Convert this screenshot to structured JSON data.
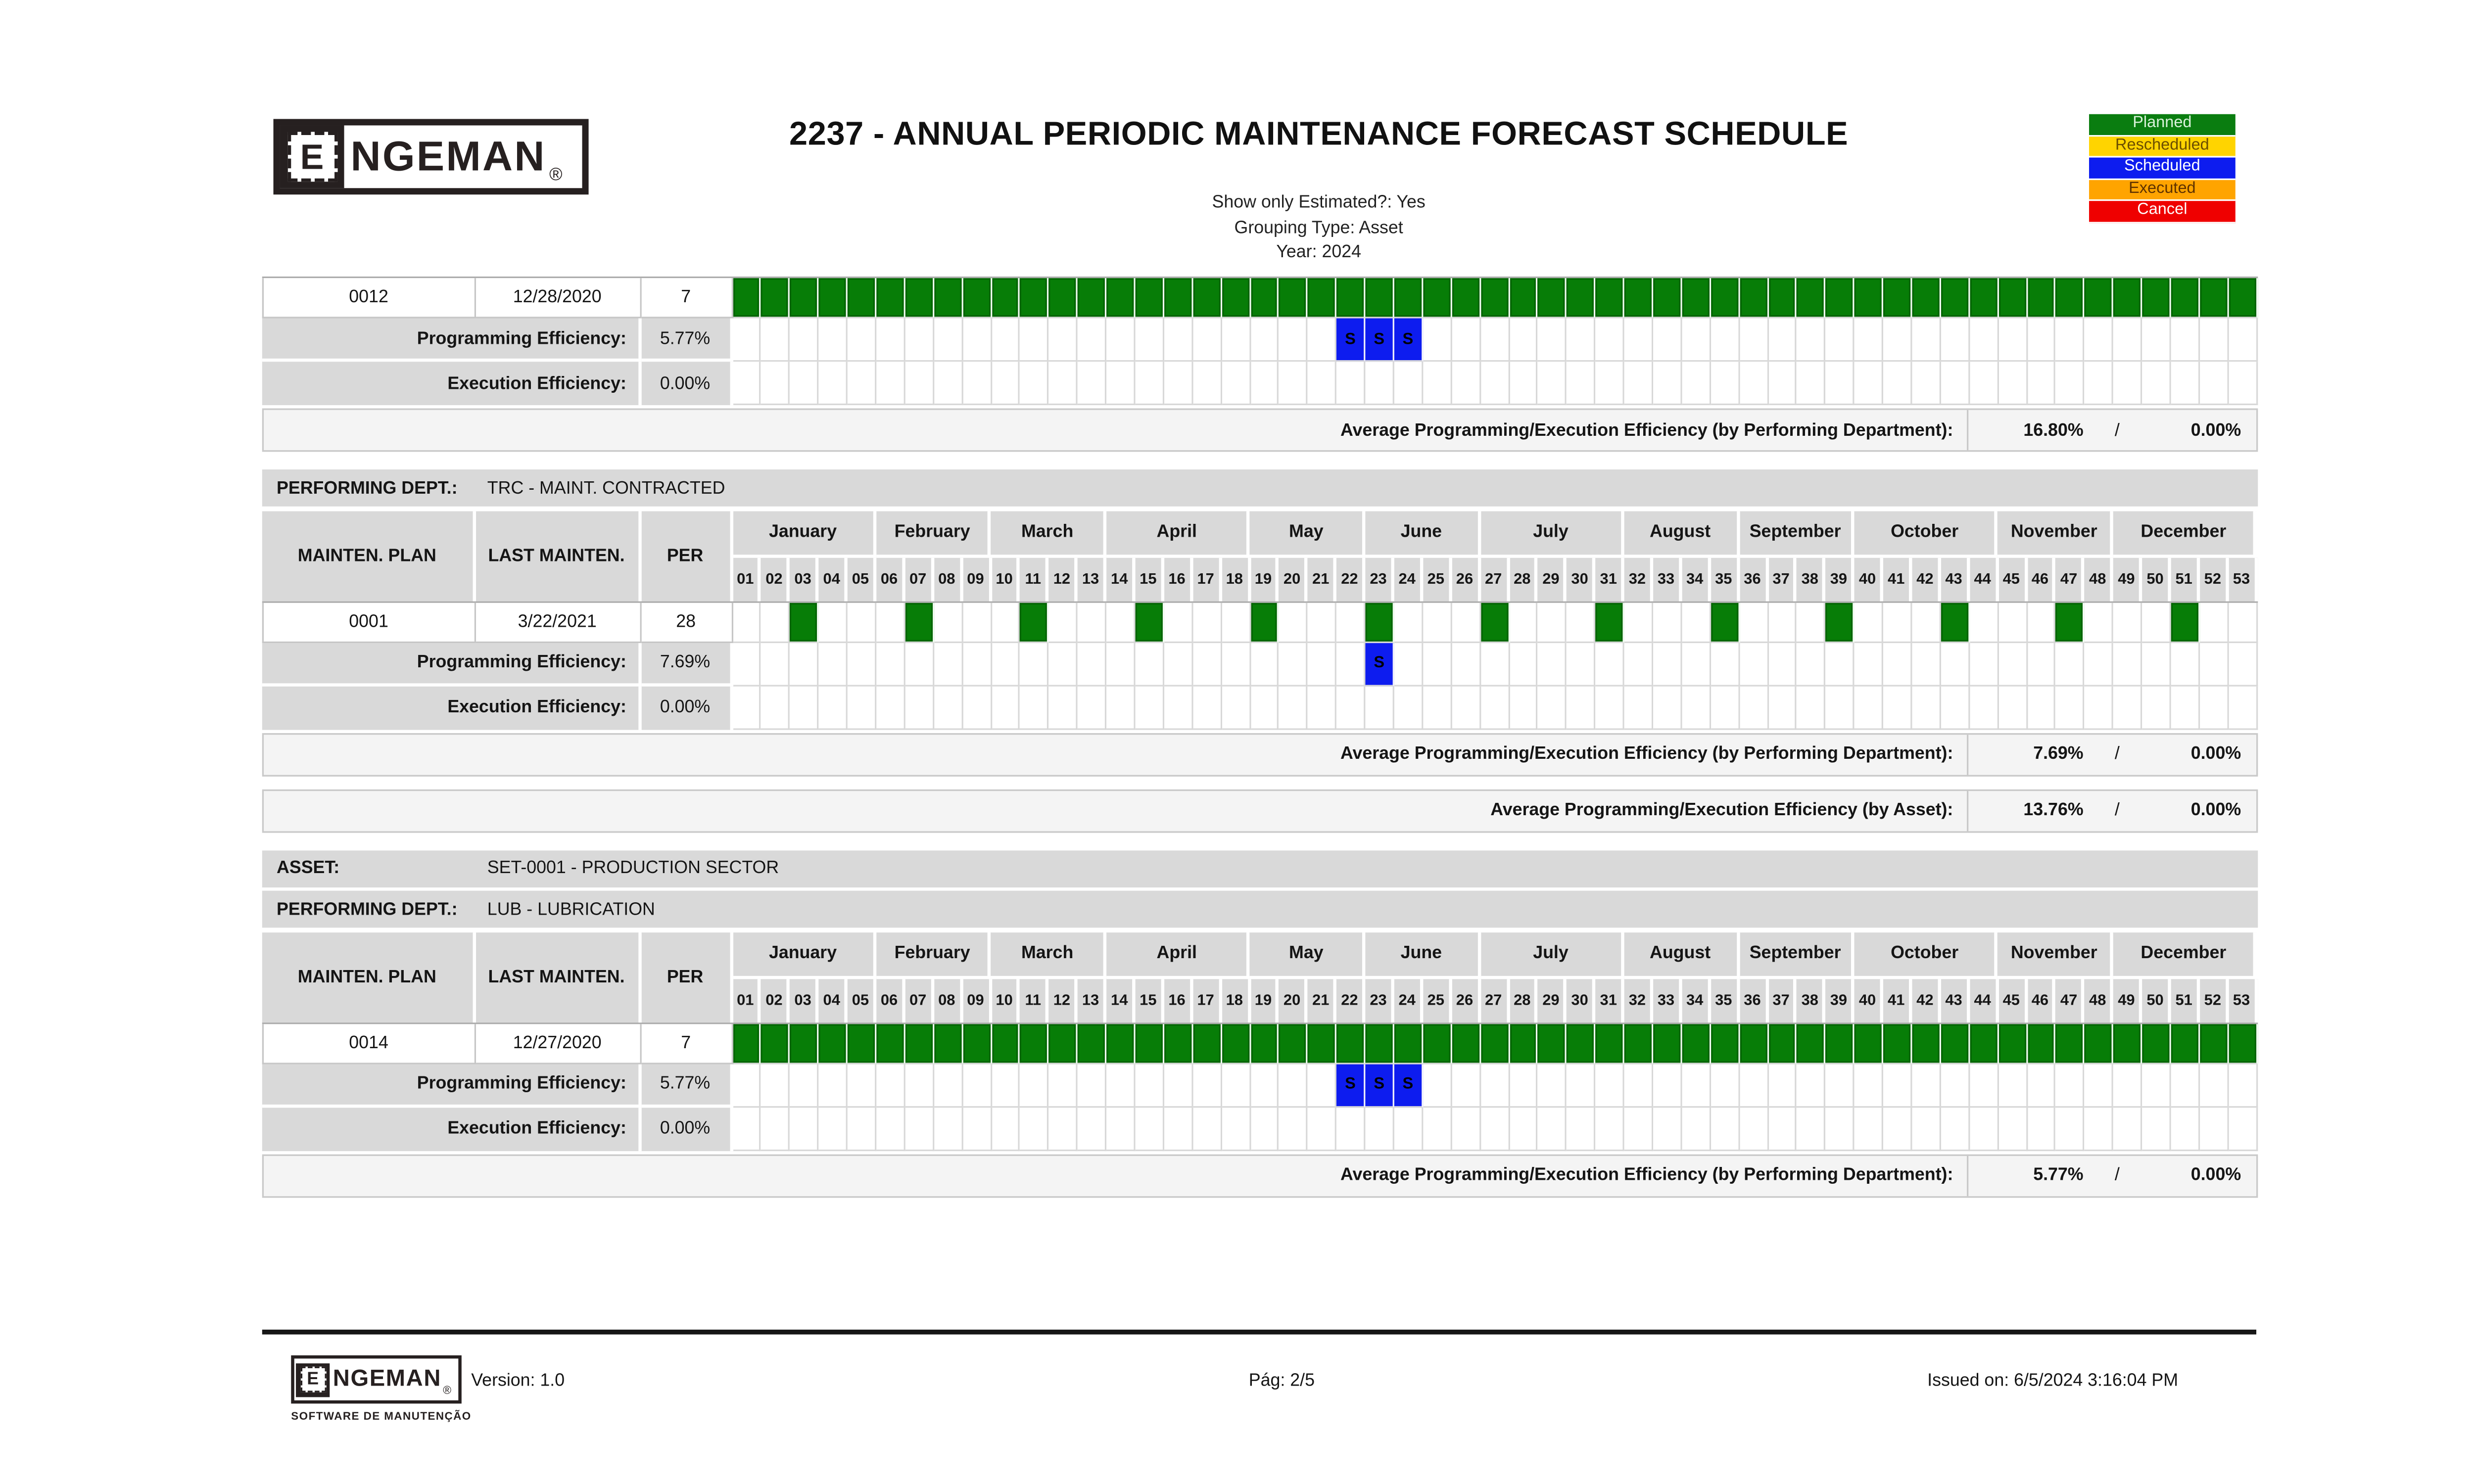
{
  "header": {
    "logo": {
      "emblem_letter": "E",
      "wordmark": "NGEMAN",
      "registered": "®"
    },
    "title": "2237 - ANNUAL PERIODIC MAINTENANCE FORECAST SCHEDULE",
    "params": [
      "Show only Estimated?: Yes",
      "Grouping Type: Asset",
      "Year: 2024"
    ]
  },
  "legend": [
    {
      "label": "Planned",
      "bg": "#0A7D10",
      "fg": "#D9F2D9"
    },
    {
      "label": "Rescheduled",
      "bg": "#FFD400",
      "fg": "#6B4E00"
    },
    {
      "label": "Scheduled",
      "bg": "#0D1CEF",
      "fg": "#FFFFFF"
    },
    {
      "label": "Executed",
      "bg": "#FFA400",
      "fg": "#5E3200"
    },
    {
      "label": "Cancel",
      "bg": "#EF0000",
      "fg": "#FFFFFF"
    }
  ],
  "calendar": {
    "months": [
      {
        "name": "January",
        "weeks": [
          "01",
          "02",
          "03",
          "04",
          "05"
        ]
      },
      {
        "name": "February",
        "weeks": [
          "06",
          "07",
          "08",
          "09"
        ]
      },
      {
        "name": "March",
        "weeks": [
          "10",
          "11",
          "12",
          "13"
        ]
      },
      {
        "name": "April",
        "weeks": [
          "14",
          "15",
          "16",
          "17",
          "18"
        ]
      },
      {
        "name": "May",
        "weeks": [
          "19",
          "20",
          "21",
          "22"
        ]
      },
      {
        "name": "June",
        "weeks": [
          "23",
          "24",
          "25",
          "26"
        ]
      },
      {
        "name": "July",
        "weeks": [
          "27",
          "28",
          "29",
          "30",
          "31"
        ]
      },
      {
        "name": "August",
        "weeks": [
          "32",
          "33",
          "34",
          "35"
        ]
      },
      {
        "name": "September",
        "weeks": [
          "36",
          "37",
          "38",
          "39"
        ]
      },
      {
        "name": "October",
        "weeks": [
          "40",
          "41",
          "42",
          "43",
          "44"
        ]
      },
      {
        "name": "November",
        "weeks": [
          "45",
          "46",
          "47",
          "48"
        ]
      },
      {
        "name": "December",
        "weeks": [
          "49",
          "50",
          "51",
          "52",
          "53"
        ]
      }
    ]
  },
  "table": {
    "columns": [
      "MAINTEN. PLAN",
      "LAST MAINTEN.",
      "PER"
    ],
    "programming_label": "Programming Efficiency:",
    "execution_label": "Execution Efficiency:",
    "scheduled_mark": "S"
  },
  "colors": {
    "planned_cell": "#077D07",
    "scheduled_cell": "#0D1CEF"
  },
  "sections": [
    {
      "bars": [],
      "show_header": false,
      "plan": {
        "code": "0012",
        "last_maintenance": "12/28/2020",
        "period": "7"
      },
      "planned_weeks": "all",
      "scheduled_weeks": [
        22,
        23,
        24
      ],
      "programming_efficiency": "5.77%",
      "execution_efficiency": "0.00%",
      "averages": [
        {
          "label": "Average Programming/Execution Efficiency (by Performing Department):",
          "value1": "16.80%",
          "separator": "/",
          "value2": "0.00%",
          "detached": false
        }
      ]
    },
    {
      "bars": [
        {
          "id": "performing-dept",
          "label": "PERFORMING DEPT.:",
          "value": "TRC - MAINT. CONTRACTED"
        }
      ],
      "show_header": true,
      "plan": {
        "code": "0001",
        "last_maintenance": "3/22/2021",
        "period": "28"
      },
      "planned_weeks": [
        3,
        7,
        11,
        15,
        19,
        23,
        27,
        31,
        35,
        39,
        43,
        47,
        51
      ],
      "scheduled_weeks": [
        23
      ],
      "programming_efficiency": "7.69%",
      "execution_efficiency": "0.00%",
      "averages": [
        {
          "label": "Average Programming/Execution Efficiency (by Performing Department):",
          "value1": "7.69%",
          "separator": "/",
          "value2": "0.00%",
          "detached": false
        },
        {
          "label": "Average Programming/Execution Efficiency (by Asset):",
          "value1": "13.76%",
          "separator": "/",
          "value2": "0.00%",
          "detached": true
        }
      ]
    },
    {
      "bars": [
        {
          "id": "asset",
          "label": "ASSET:",
          "value": "SET-0001 - PRODUCTION SECTOR"
        },
        {
          "id": "performing-dept",
          "label": "PERFORMING DEPT.:",
          "value": "LUB - LUBRICATION"
        }
      ],
      "show_header": true,
      "plan": {
        "code": "0014",
        "last_maintenance": "12/27/2020",
        "period": "7"
      },
      "planned_weeks": "all",
      "scheduled_weeks": [
        22,
        23,
        24
      ],
      "programming_efficiency": "5.77%",
      "execution_efficiency": "0.00%",
      "averages": [
        {
          "label": "Average Programming/Execution Efficiency (by Performing Department):",
          "value1": "5.77%",
          "separator": "/",
          "value2": "0.00%",
          "detached": false
        }
      ]
    }
  ],
  "footer": {
    "version": "Version: 1.0",
    "page": "Pág: 2/5",
    "issued": "Issued on: 6/5/2024 3:16:04 PM",
    "tagline": "SOFTWARE DE MANUTENÇÃO"
  }
}
